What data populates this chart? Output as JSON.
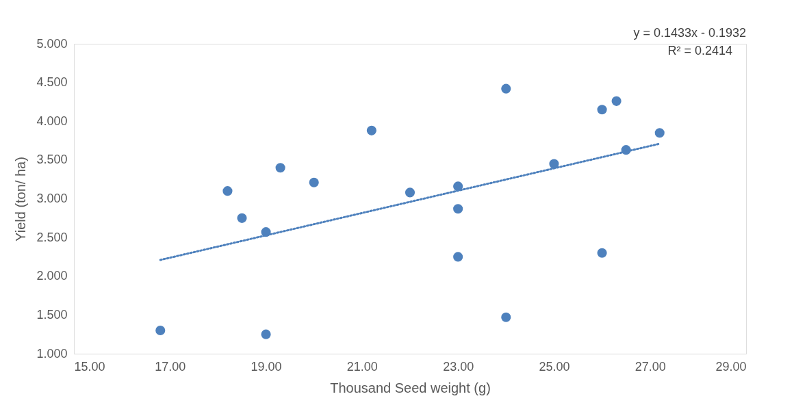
{
  "chart_data": {
    "type": "scatter",
    "xlabel": "Thousand Seed weight (g)",
    "ylabel": "Yield (ton/ ha)",
    "xlim": [
      15,
      29
    ],
    "ylim": [
      1,
      5
    ],
    "xticks": [
      {
        "value": 15,
        "label": "15.00"
      },
      {
        "value": 17,
        "label": "17.00"
      },
      {
        "value": 19,
        "label": "19.00"
      },
      {
        "value": 21,
        "label": "21.00"
      },
      {
        "value": 23,
        "label": "23.00"
      },
      {
        "value": 25,
        "label": "25.00"
      },
      {
        "value": 27,
        "label": "27.00"
      },
      {
        "value": 29,
        "label": "29.00"
      }
    ],
    "yticks": [
      {
        "value": 1,
        "label": "1.000"
      },
      {
        "value": 1.5,
        "label": "1.500"
      },
      {
        "value": 2,
        "label": "2.000"
      },
      {
        "value": 2.5,
        "label": "2.500"
      },
      {
        "value": 3,
        "label": "3.000"
      },
      {
        "value": 3.5,
        "label": "3.500"
      },
      {
        "value": 4,
        "label": "4.000"
      },
      {
        "value": 4.5,
        "label": "4.500"
      },
      {
        "value": 5,
        "label": "5.000"
      }
    ],
    "grid": false,
    "annotations": [
      "y = 0.1433x - 0.1932",
      "R² = 0.2414"
    ],
    "series": [
      {
        "marker": "circle",
        "color": "#4e81bd",
        "x": [
          16.8,
          18.2,
          18.5,
          19.0,
          19.0,
          19.3,
          20.0,
          21.2,
          22.0,
          23.0,
          23.0,
          23.0,
          24.0,
          24.0,
          25.0,
          26.0,
          26.0,
          26.3,
          26.5,
          27.2
        ],
        "values": [
          1.3,
          3.1,
          2.75,
          2.57,
          1.25,
          3.4,
          3.21,
          3.88,
          3.08,
          3.16,
          2.87,
          2.25,
          4.42,
          1.47,
          3.45,
          4.15,
          2.3,
          4.26,
          3.63,
          3.85
        ]
      },
      {
        "type": "line",
        "line_style": "dotted",
        "color": "#4e81bd",
        "x": [
          16.8,
          27.2
        ],
        "values": [
          2.21,
          3.71
        ]
      }
    ]
  }
}
